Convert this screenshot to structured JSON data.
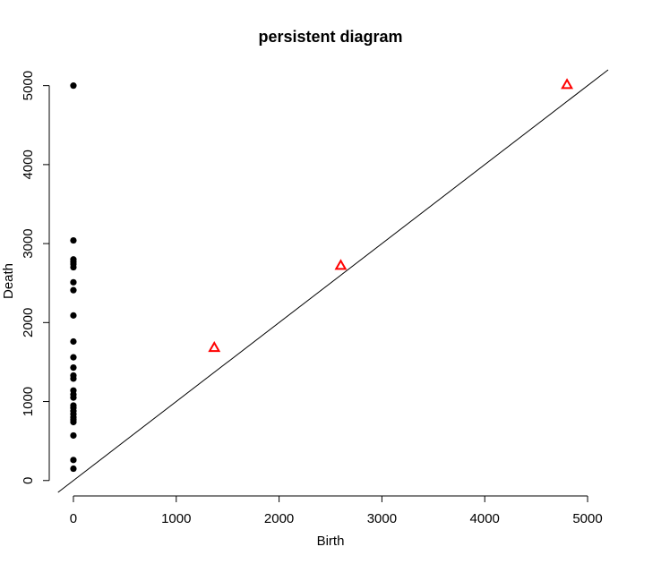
{
  "chart_data": {
    "type": "scatter",
    "title": "persistent diagram",
    "xlabel": "Birth",
    "ylabel": "Death",
    "xlim": [
      -200,
      5200
    ],
    "ylim": [
      -150,
      5200
    ],
    "x_ticks": [
      0,
      1000,
      2000,
      3000,
      4000,
      5000
    ],
    "y_ticks": [
      0,
      1000,
      2000,
      3000,
      4000,
      5000
    ],
    "x_tick_labels": [
      "0",
      "1000",
      "2000",
      "3000",
      "4000",
      "5000"
    ],
    "y_tick_labels": [
      "0",
      "1000",
      "2000",
      "3000",
      "4000",
      "5000"
    ],
    "diagonal": true,
    "colors": {
      "dim0": "#000000",
      "dim1": "#ff0000",
      "line": "#000000"
    },
    "series": [
      {
        "marker": "filled-circle",
        "color": "#000000",
        "points": [
          [
            0,
            5000
          ],
          [
            0,
            3040
          ],
          [
            0,
            2800
          ],
          [
            0,
            2770
          ],
          [
            0,
            2740
          ],
          [
            0,
            2700
          ],
          [
            0,
            2510
          ],
          [
            0,
            2410
          ],
          [
            0,
            2090
          ],
          [
            0,
            1760
          ],
          [
            0,
            1560
          ],
          [
            0,
            1430
          ],
          [
            0,
            1330
          ],
          [
            0,
            1290
          ],
          [
            0,
            1140
          ],
          [
            0,
            1090
          ],
          [
            0,
            1050
          ],
          [
            0,
            950
          ],
          [
            0,
            920
          ],
          [
            0,
            880
          ],
          [
            0,
            840
          ],
          [
            0,
            800
          ],
          [
            0,
            770
          ],
          [
            0,
            740
          ],
          [
            0,
            570
          ],
          [
            0,
            260
          ],
          [
            0,
            150
          ]
        ]
      },
      {
        "marker": "open-triangle",
        "color": "#ff0000",
        "points": [
          [
            1370,
            1680
          ],
          [
            2600,
            2720
          ],
          [
            4800,
            5010
          ]
        ]
      }
    ]
  }
}
